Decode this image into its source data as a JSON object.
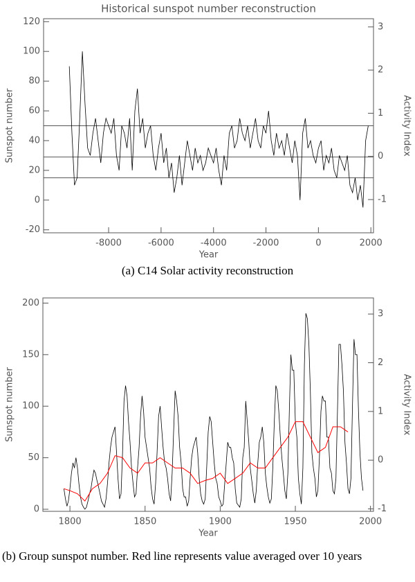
{
  "charts": [
    {
      "type": "line",
      "title": "Historical sunspot number reconstruction",
      "xlabel": "Year",
      "ylabel": "Sunspot number",
      "y2label": "Activity Index",
      "caption": "(a) C14 Solar activity reconstruction",
      "xlim": [
        -10480,
        2100
      ],
      "xticks": [
        -8000,
        -6000,
        -4000,
        -2000,
        0,
        2000
      ],
      "ylim": [
        -22,
        122
      ],
      "yticks": [
        -20,
        0,
        20,
        40,
        60,
        80,
        100,
        120
      ],
      "y2lim": [
        -1.77,
        3.19
      ],
      "y2ticks": [
        -1,
        0,
        1,
        2,
        3
      ],
      "hlines": [
        50,
        29,
        15
      ],
      "series": [
        {
          "color": "#000000",
          "x": [
            -9500,
            -9400,
            -9300,
            -9200,
            -9100,
            -9000,
            -8900,
            -8800,
            -8700,
            -8600,
            -8500,
            -8400,
            -8300,
            -8200,
            -8100,
            -8000,
            -7900,
            -7800,
            -7700,
            -7600,
            -7500,
            -7400,
            -7300,
            -7200,
            -7100,
            -7000,
            -6900,
            -6800,
            -6700,
            -6600,
            -6500,
            -6400,
            -6300,
            -6200,
            -6100,
            -6000,
            -5900,
            -5800,
            -5700,
            -5600,
            -5500,
            -5400,
            -5300,
            -5200,
            -5100,
            -5000,
            -4900,
            -4800,
            -4700,
            -4600,
            -4500,
            -4400,
            -4300,
            -4200,
            -4100,
            -4000,
            -3900,
            -3800,
            -3700,
            -3600,
            -3500,
            -3400,
            -3300,
            -3200,
            -3100,
            -3000,
            -2900,
            -2800,
            -2700,
            -2600,
            -2500,
            -2400,
            -2300,
            -2200,
            -2100,
            -2000,
            -1900,
            -1800,
            -1700,
            -1600,
            -1500,
            -1400,
            -1300,
            -1200,
            -1100,
            -1000,
            -900,
            -800,
            -700,
            -600,
            -500,
            -400,
            -300,
            -200,
            -100,
            0,
            100,
            200,
            300,
            400,
            500,
            600,
            700,
            800,
            900,
            1000,
            1100,
            1200,
            1300,
            1400,
            1500,
            1600,
            1700,
            1800,
            1900
          ],
          "values": [
            90,
            45,
            10,
            15,
            55,
            100,
            65,
            35,
            30,
            45,
            55,
            40,
            25,
            45,
            55,
            50,
            45,
            55,
            30,
            20,
            50,
            45,
            35,
            55,
            20,
            60,
            75,
            45,
            55,
            35,
            45,
            50,
            30,
            20,
            35,
            45,
            25,
            35,
            15,
            25,
            5,
            15,
            30,
            10,
            25,
            40,
            30,
            20,
            35,
            25,
            30,
            20,
            25,
            35,
            30,
            25,
            35,
            20,
            10,
            30,
            20,
            45,
            50,
            35,
            40,
            55,
            45,
            40,
            50,
            35,
            45,
            55,
            40,
            35,
            50,
            45,
            60,
            40,
            30,
            45,
            35,
            40,
            30,
            45,
            35,
            25,
            40,
            30,
            0,
            45,
            55,
            35,
            40,
            30,
            25,
            35,
            40,
            20,
            30,
            25,
            35,
            20,
            15,
            30,
            25,
            20,
            30,
            10,
            5,
            15,
            0,
            10,
            -5,
            40,
            50
          ]
        }
      ]
    },
    {
      "type": "line",
      "xlabel": "Year",
      "ylabel": "Sunspot number",
      "y2label": "Activity Index",
      "caption": "(b) Group sunspot number. Red line represents value averaged over 10 years",
      "xlim": [
        1782,
        2002
      ],
      "xticks": [
        1800,
        1850,
        1900,
        1950,
        2000
      ],
      "ylim": [
        -2,
        205
      ],
      "yticks": [
        0,
        50,
        100,
        150,
        200
      ],
      "y2lim": [
        -1.05,
        3.33
      ],
      "y2ticks": [
        -1,
        0,
        1,
        2,
        3
      ],
      "series": [
        {
          "color": "#000000",
          "x": [
            1796,
            1797,
            1798,
            1799,
            1800,
            1801,
            1802,
            1803,
            1804,
            1805,
            1806,
            1807,
            1808,
            1809,
            1810,
            1811,
            1812,
            1813,
            1814,
            1815,
            1816,
            1817,
            1818,
            1819,
            1820,
            1821,
            1822,
            1823,
            1824,
            1825,
            1826,
            1827,
            1828,
            1829,
            1830,
            1831,
            1832,
            1833,
            1834,
            1835,
            1836,
            1837,
            1838,
            1839,
            1840,
            1841,
            1842,
            1843,
            1844,
            1845,
            1846,
            1847,
            1848,
            1849,
            1850,
            1851,
            1852,
            1853,
            1854,
            1855,
            1856,
            1857,
            1858,
            1859,
            1860,
            1861,
            1862,
            1863,
            1864,
            1865,
            1866,
            1867,
            1868,
            1869,
            1870,
            1871,
            1872,
            1873,
            1874,
            1875,
            1876,
            1877,
            1878,
            1879,
            1880,
            1881,
            1882,
            1883,
            1884,
            1885,
            1886,
            1887,
            1888,
            1889,
            1890,
            1891,
            1892,
            1893,
            1894,
            1895,
            1896,
            1897,
            1898,
            1899,
            1900,
            1901,
            1902,
            1903,
            1904,
            1905,
            1906,
            1907,
            1908,
            1909,
            1910,
            1911,
            1912,
            1913,
            1914,
            1915,
            1916,
            1917,
            1918,
            1919,
            1920,
            1921,
            1922,
            1923,
            1924,
            1925,
            1926,
            1927,
            1928,
            1929,
            1930,
            1931,
            1932,
            1933,
            1934,
            1935,
            1936,
            1937,
            1938,
            1939,
            1940,
            1941,
            1942,
            1943,
            1944,
            1945,
            1946,
            1947,
            1948,
            1949,
            1950,
            1951,
            1952,
            1953,
            1954,
            1955,
            1956,
            1957,
            1958,
            1959,
            1960,
            1961,
            1962,
            1963,
            1964,
            1965,
            1966,
            1967,
            1968,
            1969,
            1970,
            1971,
            1972,
            1973,
            1974,
            1975,
            1976,
            1977,
            1978,
            1979,
            1980,
            1981,
            1982,
            1983,
            1984,
            1985,
            1986,
            1987,
            1988,
            1989,
            1990,
            1991,
            1992,
            1993,
            1994,
            1995
          ],
          "values": [
            20,
            10,
            3,
            8,
            20,
            35,
            45,
            40,
            50,
            40,
            25,
            12,
            5,
            2,
            0,
            2,
            8,
            15,
            20,
            30,
            38,
            35,
            28,
            22,
            15,
            8,
            5,
            2,
            10,
            25,
            45,
            60,
            70,
            75,
            80,
            55,
            30,
            10,
            15,
            55,
            105,
            120,
            110,
            85,
            65,
            40,
            25,
            12,
            15,
            40,
            60,
            90,
            110,
            95,
            70,
            60,
            50,
            40,
            22,
            10,
            5,
            25,
            55,
            90,
            100,
            80,
            60,
            45,
            40,
            30,
            15,
            8,
            35,
            75,
            115,
            105,
            90,
            60,
            45,
            20,
            12,
            12,
            3,
            8,
            30,
            50,
            60,
            65,
            70,
            55,
            30,
            15,
            8,
            5,
            10,
            40,
            75,
            90,
            85,
            65,
            45,
            30,
            25,
            12,
            8,
            3,
            5,
            25,
            45,
            65,
            60,
            60,
            50,
            45,
            20,
            6,
            4,
            2,
            10,
            50,
            60,
            105,
            85,
            65,
            40,
            28,
            15,
            6,
            18,
            45,
            65,
            70,
            80,
            65,
            35,
            22,
            12,
            6,
            10,
            40,
            85,
            120,
            115,
            95,
            70,
            50,
            35,
            18,
            10,
            35,
            95,
            150,
            135,
            135,
            85,
            70,
            30,
            15,
            5,
            40,
            140,
            190,
            185,
            160,
            115,
            55,
            40,
            30,
            12,
            18,
            50,
            95,
            110,
            105,
            105,
            70,
            70,
            40,
            35,
            18,
            15,
            30,
            95,
            160,
            160,
            140,
            115,
            65,
            45,
            20,
            15,
            30,
            100,
            165,
            150,
            150,
            95,
            55,
            30,
            18
          ]
        },
        {
          "color": "#ff0000",
          "x": [
            1796,
            1800,
            1805,
            1810,
            1815,
            1820,
            1825,
            1830,
            1835,
            1840,
            1845,
            1850,
            1855,
            1860,
            1865,
            1870,
            1875,
            1880,
            1885,
            1890,
            1895,
            1900,
            1905,
            1910,
            1915,
            1920,
            1925,
            1930,
            1935,
            1940,
            1945,
            1950,
            1955,
            1960,
            1965,
            1970,
            1975,
            1980,
            1985
          ],
          "values": [
            20,
            18,
            15,
            8,
            20,
            25,
            35,
            52,
            50,
            40,
            35,
            45,
            45,
            50,
            45,
            40,
            40,
            35,
            25,
            28,
            30,
            35,
            25,
            30,
            35,
            45,
            40,
            40,
            50,
            60,
            70,
            85,
            85,
            70,
            55,
            60,
            80,
            80,
            75
          ]
        }
      ]
    }
  ]
}
